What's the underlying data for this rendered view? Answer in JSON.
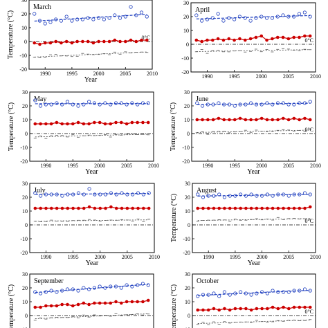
{
  "figure": {
    "zero_label": "0°C"
  },
  "chart_data": [
    {
      "type": "scatter",
      "title": "March",
      "xlabel": "Year",
      "ylabel": "Temperature (°C)",
      "xlim": [
        1987,
        2010
      ],
      "ylim": [
        -20,
        30
      ],
      "xticks": [
        "1990",
        "1995",
        "2000",
        "2005",
        "2010"
      ],
      "yticks": [
        "30",
        "20",
        "10",
        "0",
        "-10",
        "-20"
      ],
      "x": [
        1988,
        1989,
        1990,
        1991,
        1992,
        1993,
        1994,
        1995,
        1996,
        1997,
        1998,
        1999,
        2000,
        2001,
        2002,
        2003,
        2004,
        2005,
        2006,
        2007,
        2008,
        2009
      ],
      "series": [
        {
          "role": "max",
          "color": "#1f3fbf",
          "values": [
            20,
            15,
            13,
            14,
            16,
            15,
            18,
            15,
            16,
            16,
            17,
            16,
            17,
            16,
            17,
            19,
            17,
            18,
            25,
            19,
            21,
            18
          ]
        },
        {
          "role": "mean",
          "color": "#cc0000",
          "values": [
            -1,
            -2,
            -1,
            -1,
            0,
            -1,
            0,
            -1,
            0,
            0,
            0,
            -1,
            0,
            0,
            0,
            1,
            0,
            0,
            1,
            0,
            1,
            1
          ]
        },
        {
          "role": "min",
          "color": "#555555",
          "values": [
            -11,
            -12,
            -11,
            -10,
            -9,
            -11,
            -10,
            -11,
            -10,
            -9,
            -9,
            -10,
            -9,
            -9,
            -9,
            -8,
            -9,
            -8,
            -8,
            -8,
            -7,
            -8
          ]
        }
      ]
    },
    {
      "type": "scatter",
      "title": "April",
      "xlabel": "",
      "ylabel": "",
      "xlim": [
        1987,
        2010
      ],
      "ylim": [
        -20,
        30
      ],
      "xticks": [
        "1990",
        "1995",
        "2000",
        "2005",
        "2010"
      ],
      "yticks": [
        "30",
        "20",
        "10",
        "0",
        "-10",
        "-20"
      ],
      "x": [
        1988,
        1989,
        1990,
        1991,
        1992,
        1993,
        1994,
        1995,
        1996,
        1997,
        1998,
        1999,
        2000,
        2001,
        2002,
        2003,
        2004,
        2005,
        2006,
        2007,
        2008,
        2009
      ],
      "series": [
        {
          "role": "max",
          "color": "#1f3fbf",
          "values": [
            21,
            17,
            18,
            19,
            22,
            17,
            19,
            18,
            20,
            19,
            17,
            19,
            20,
            19,
            19,
            20,
            21,
            20,
            20,
            22,
            23,
            20
          ]
        },
        {
          "role": "mean",
          "color": "#cc0000",
          "values": [
            3,
            2,
            3,
            3,
            4,
            3,
            4,
            3,
            4,
            3,
            4,
            5,
            6,
            3,
            4,
            5,
            5,
            4,
            5,
            5,
            6,
            6
          ]
        },
        {
          "role": "min",
          "color": "#555555",
          "values": [
            -5,
            -4,
            -6,
            -5,
            -4,
            -6,
            -5,
            -5,
            -4,
            -6,
            -5,
            -4,
            -5,
            -4,
            -5,
            -4,
            -3,
            -4,
            -4,
            -5,
            -3,
            -4
          ]
        }
      ]
    },
    {
      "type": "scatter",
      "title": "May",
      "xlabel": "Year",
      "ylabel": "Temperature (°C)",
      "xlim": [
        1987,
        2010
      ],
      "ylim": [
        -20,
        30
      ],
      "xticks": [
        "1990",
        "1995",
        "2000",
        "2005",
        "2010"
      ],
      "yticks": [
        "30",
        "20",
        "10",
        "0",
        "-10",
        "-20"
      ],
      "x": [
        1988,
        1989,
        1990,
        1991,
        1992,
        1993,
        1994,
        1995,
        1996,
        1997,
        1998,
        1999,
        2000,
        2001,
        2002,
        2003,
        2004,
        2005,
        2006,
        2007,
        2008,
        2009
      ],
      "series": [
        {
          "role": "max",
          "color": "#1f3fbf",
          "values": [
            24,
            20,
            21,
            21,
            22,
            21,
            23,
            21,
            20,
            21,
            23,
            22,
            21,
            22,
            21,
            22,
            22,
            21,
            22,
            21,
            22,
            22
          ]
        },
        {
          "role": "mean",
          "color": "#cc0000",
          "values": [
            7,
            7,
            7,
            7,
            8,
            7,
            7,
            7,
            8,
            7,
            7,
            8,
            8,
            7,
            7,
            8,
            8,
            7,
            8,
            8,
            8,
            8
          ]
        },
        {
          "role": "min",
          "color": "#555555",
          "values": [
            -3,
            -2,
            -3,
            -2,
            -1,
            -2,
            -2,
            -1,
            -2,
            -2,
            -1,
            -2,
            -1,
            -1,
            -2,
            -1,
            -1,
            -1,
            0,
            -1,
            0,
            -1
          ]
        }
      ]
    },
    {
      "type": "scatter",
      "title": "June",
      "xlabel": "Year",
      "ylabel": "Temperature (°C)",
      "xlim": [
        1987,
        2010
      ],
      "ylim": [
        -20,
        30
      ],
      "xticks": [
        "1990",
        "1995",
        "2000",
        "2005",
        "2010"
      ],
      "yticks": [
        "30",
        "20",
        "10",
        "0",
        "-10",
        "-20"
      ],
      "x": [
        1988,
        1989,
        1990,
        1991,
        1992,
        1993,
        1994,
        1995,
        1996,
        1997,
        1998,
        1999,
        2000,
        2001,
        2002,
        2003,
        2004,
        2005,
        2006,
        2007,
        2008,
        2009
      ],
      "series": [
        {
          "role": "max",
          "color": "#1f3fbf",
          "values": [
            22,
            20,
            21,
            21,
            22,
            21,
            21,
            20,
            21,
            21,
            22,
            21,
            21,
            22,
            21,
            22,
            22,
            21,
            21,
            22,
            22,
            23
          ]
        },
        {
          "role": "mean",
          "color": "#cc0000",
          "values": [
            10,
            10,
            10,
            10,
            11,
            10,
            10,
            10,
            11,
            10,
            10,
            10,
            11,
            10,
            10,
            10,
            11,
            10,
            11,
            10,
            11,
            10
          ]
        },
        {
          "role": "min",
          "color": "#555555",
          "values": [
            1,
            1,
            0,
            1,
            2,
            1,
            1,
            1,
            2,
            2,
            1,
            2,
            2,
            1,
            2,
            2,
            3,
            2,
            2,
            2,
            2,
            3
          ]
        }
      ]
    },
    {
      "type": "scatter",
      "title": "July",
      "xlabel": "Year",
      "ylabel": "",
      "xlim": [
        1987,
        2010
      ],
      "ylim": [
        -20,
        30
      ],
      "xticks": [
        "1990",
        "1995",
        "2000",
        "2005",
        "2010"
      ],
      "yticks": [
        "30",
        "20",
        "10",
        "0",
        "-10",
        "-20"
      ],
      "x": [
        1988,
        1989,
        1990,
        1991,
        1992,
        1993,
        1994,
        1995,
        1996,
        1997,
        1998,
        1999,
        2000,
        2001,
        2002,
        2003,
        2004,
        2005,
        2006,
        2007,
        2008,
        2009
      ],
      "series": [
        {
          "role": "max",
          "color": "#1f3fbf",
          "values": [
            23,
            21,
            22,
            22,
            22,
            21,
            22,
            22,
            23,
            22,
            26,
            22,
            22,
            22,
            23,
            22,
            23,
            22,
            22,
            23,
            22,
            23
          ]
        },
        {
          "role": "mean",
          "color": "#cc0000",
          "values": [
            12,
            12,
            12,
            12,
            12,
            12,
            12,
            12,
            12,
            12,
            13,
            12,
            12,
            12,
            13,
            12,
            12,
            12,
            12,
            12,
            12,
            12
          ]
        },
        {
          "role": "min",
          "color": "#555555",
          "values": [
            3,
            2,
            3,
            3,
            3,
            2,
            3,
            3,
            4,
            3,
            4,
            3,
            3,
            3,
            4,
            3,
            4,
            3,
            3,
            4,
            3,
            4
          ]
        }
      ]
    },
    {
      "type": "scatter",
      "title": "August",
      "xlabel": "Year",
      "ylabel": "Temperature (°C)",
      "xlim": [
        1987,
        2010
      ],
      "ylim": [
        -20,
        30
      ],
      "xticks": [
        "1990",
        "1995",
        "2000",
        "2005",
        "2010"
      ],
      "yticks": [
        "30",
        "20",
        "10",
        "0",
        "-10",
        "-20"
      ],
      "x": [
        1988,
        1989,
        1990,
        1991,
        1992,
        1993,
        1994,
        1995,
        1996,
        1997,
        1998,
        1999,
        2000,
        2001,
        2002,
        2003,
        2004,
        2005,
        2006,
        2007,
        2008,
        2009
      ],
      "series": [
        {
          "role": "max",
          "color": "#1f3fbf",
          "values": [
            22,
            20,
            21,
            21,
            22,
            20,
            21,
            21,
            22,
            21,
            22,
            21,
            21,
            22,
            21,
            22,
            22,
            21,
            22,
            22,
            23,
            22
          ]
        },
        {
          "role": "mean",
          "color": "#cc0000",
          "values": [
            12,
            12,
            12,
            12,
            12,
            12,
            12,
            12,
            12,
            12,
            12,
            12,
            12,
            12,
            12,
            12,
            12,
            12,
            12,
            12,
            12,
            13
          ]
        },
        {
          "role": "min",
          "color": "#555555",
          "values": [
            3,
            3,
            4,
            3,
            4,
            3,
            3,
            4,
            4,
            3,
            4,
            4,
            4,
            4,
            4,
            5,
            4,
            4,
            5,
            4,
            5,
            4
          ]
        }
      ]
    },
    {
      "type": "scatter",
      "title": "September",
      "xlabel": "",
      "ylabel": "Temperature (°C)",
      "xlim": [
        1987,
        2010
      ],
      "ylim": [
        -20,
        30
      ],
      "xticks": [],
      "yticks": [
        "30",
        "20",
        "10",
        "0",
        "-10"
      ],
      "x": [
        1988,
        1989,
        1990,
        1991,
        1992,
        1993,
        1994,
        1995,
        1996,
        1997,
        1998,
        1999,
        2000,
        2001,
        2002,
        2003,
        2004,
        2005,
        2006,
        2007,
        2008,
        2009
      ],
      "series": [
        {
          "role": "max",
          "color": "#1f3fbf",
          "values": [
            17,
            16,
            17,
            18,
            17,
            18,
            19,
            19,
            18,
            20,
            19,
            20,
            21,
            20,
            21,
            21,
            20,
            22,
            21,
            22,
            23,
            22
          ]
        },
        {
          "role": "mean",
          "color": "#cc0000",
          "values": [
            6,
            6,
            7,
            7,
            7,
            8,
            8,
            7,
            8,
            9,
            8,
            9,
            9,
            9,
            9,
            10,
            9,
            10,
            10,
            10,
            10,
            11
          ]
        },
        {
          "role": "min",
          "color": "#555555",
          "values": [
            -3,
            -2,
            -2,
            -2,
            -1,
            -2,
            -1,
            -1,
            -1,
            0,
            -1,
            0,
            0,
            0,
            0,
            1,
            0,
            0,
            1,
            1,
            1,
            1
          ]
        }
      ]
    },
    {
      "type": "scatter",
      "title": "October",
      "xlabel": "",
      "ylabel": "Temperature (°C)",
      "xlim": [
        1987,
        2010
      ],
      "ylim": [
        -20,
        30
      ],
      "xticks": [],
      "yticks": [
        "30",
        "20",
        "10",
        "0",
        "-10"
      ],
      "x": [
        1988,
        1989,
        1990,
        1991,
        1992,
        1993,
        1994,
        1995,
        1996,
        1997,
        1998,
        1999,
        2000,
        2001,
        2002,
        2003,
        2004,
        2005,
        2006,
        2007,
        2008,
        2009
      ],
      "series": [
        {
          "role": "max",
          "color": "#1f3fbf",
          "values": [
            14,
            15,
            15,
            16,
            14,
            17,
            15,
            16,
            17,
            16,
            15,
            16,
            17,
            16,
            18,
            17,
            17,
            17,
            18,
            18,
            19,
            18
          ]
        },
        {
          "role": "mean",
          "color": "#cc0000",
          "values": [
            4,
            4,
            4,
            5,
            4,
            5,
            4,
            5,
            5,
            5,
            4,
            5,
            5,
            5,
            6,
            5,
            6,
            5,
            6,
            6,
            6,
            6
          ]
        },
        {
          "role": "min",
          "color": "#555555",
          "values": [
            -6,
            -5,
            -6,
            -5,
            -6,
            -5,
            -5,
            -5,
            -4,
            -5,
            -5,
            -4,
            -4,
            -5,
            -4,
            -4,
            -4,
            -4,
            -3,
            -4,
            -3,
            -3
          ]
        }
      ]
    }
  ]
}
